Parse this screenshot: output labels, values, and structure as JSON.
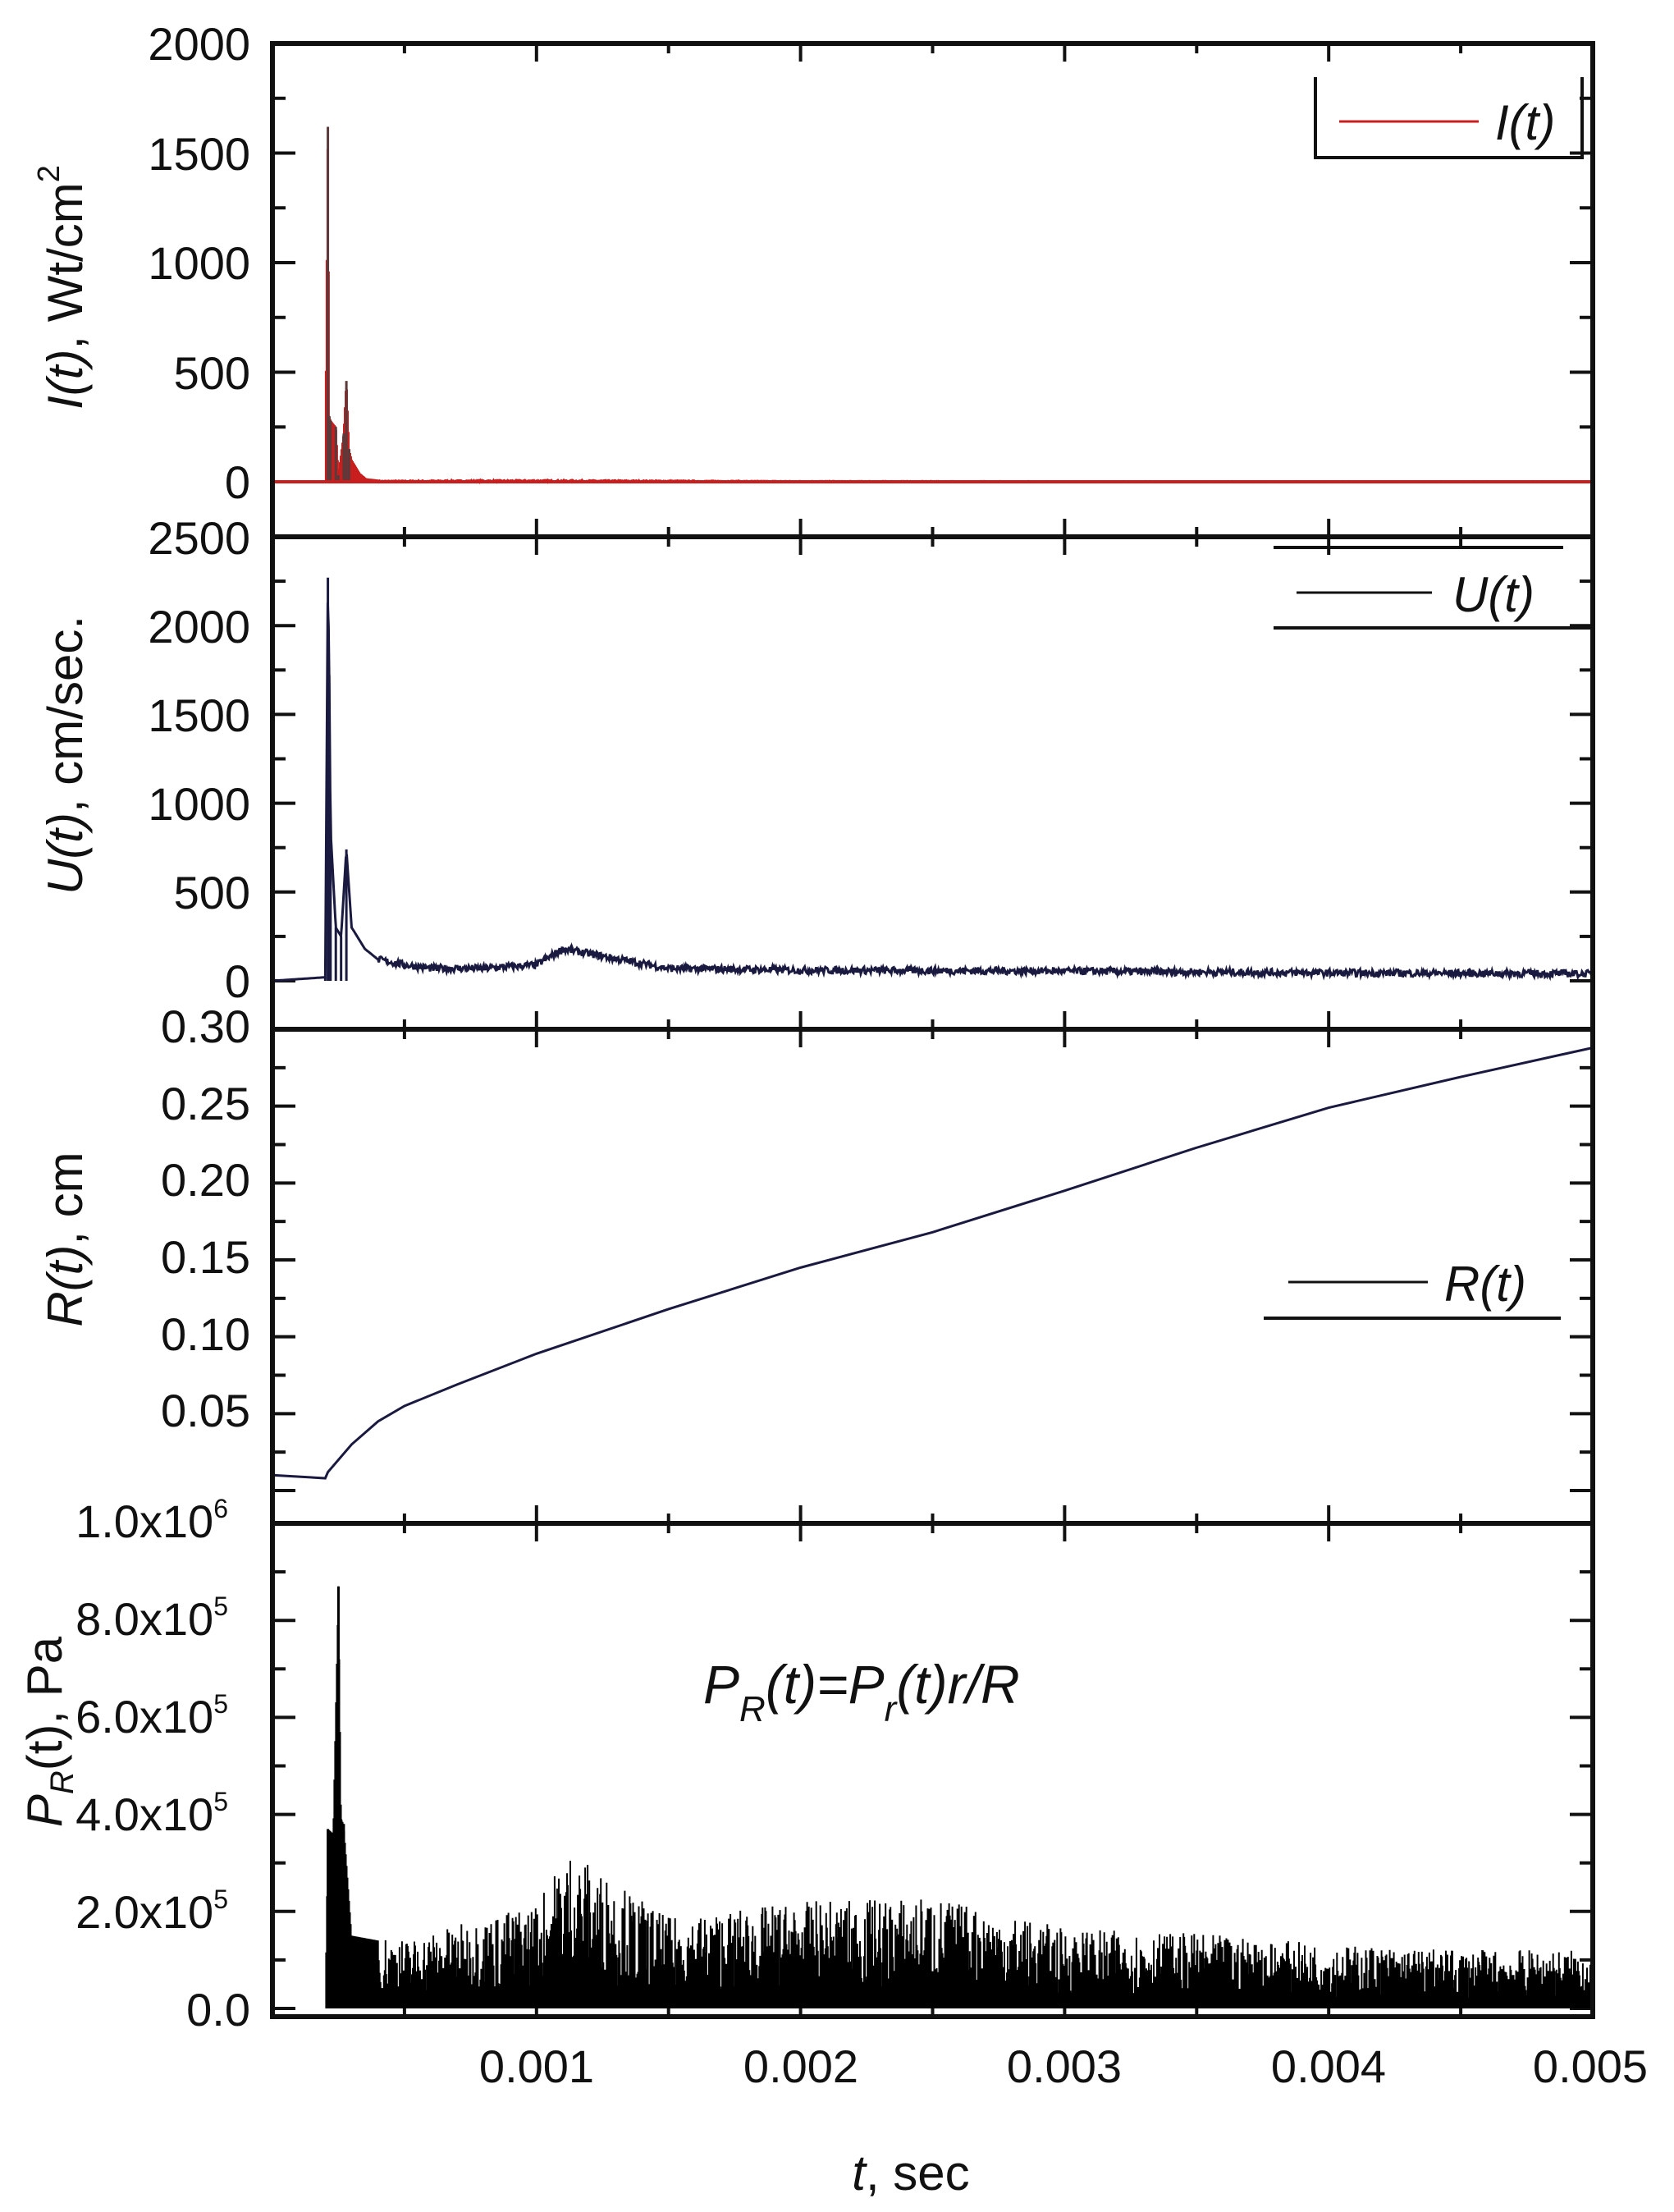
{
  "chart_data": [
    {
      "type": "line",
      "panel": "I",
      "title": "",
      "xlabel": "t, sec",
      "ylabel": "I(t), Wt/cm²",
      "ylabel_parts": {
        "func": "I(t)",
        "unit": ", Wt/cm",
        "sup": "2"
      },
      "ylim": [
        0,
        2000
      ],
      "yticks": [
        0,
        500,
        1000,
        1500,
        2000
      ],
      "ytick_labels": [
        "0",
        "500",
        "1000",
        "1500",
        "2000"
      ],
      "legend": [
        {
          "label": "I(t)",
          "color": "#c81e1e"
        }
      ],
      "legend_position": "upper right",
      "series": [
        {
          "name": "I(t)",
          "color": "#c81e1e",
          "x": [
            0,
            0.0002,
            0.00021,
            0.000215,
            0.00022,
            0.00024,
            0.00025,
            0.00027,
            0.00028,
            0.00029,
            0.0003,
            0.00033,
            0.00036,
            0.0004,
            0.001,
            0.002,
            0.003,
            0.004,
            0.005
          ],
          "values": [
            0,
            0,
            1620,
            300,
            280,
            250,
            30,
            220,
            460,
            150,
            100,
            40,
            10,
            5,
            8,
            3,
            2,
            2,
            2
          ]
        }
      ]
    },
    {
      "type": "line",
      "panel": "U",
      "ylabel": "U(t), cm/sec.",
      "ylabel_parts": {
        "func": "U(t)",
        "unit": ", cm/sec."
      },
      "ylim": [
        0,
        2500
      ],
      "yticks": [
        0,
        500,
        1000,
        1500,
        2000,
        2500
      ],
      "ytick_labels": [
        "0",
        "500",
        "1000",
        "1500",
        "2000",
        "2500"
      ],
      "legend": [
        {
          "label": "U(t)",
          "color": "#1a1a40"
        }
      ],
      "legend_position": "upper right",
      "series": [
        {
          "name": "U(t)",
          "color": "#1a1a40",
          "x": [
            0,
            0.0002,
            0.00021,
            0.000215,
            0.00022,
            0.00024,
            0.00026,
            0.00028,
            0.0003,
            0.00035,
            0.0004,
            0.0005,
            0.0006,
            0.0008,
            0.001,
            0.0011,
            0.0015,
            0.002,
            0.003,
            0.004,
            0.005
          ],
          "values": [
            0,
            20,
            2270,
            1720,
            850,
            300,
            250,
            740,
            300,
            180,
            120,
            90,
            70,
            70,
            90,
            180,
            70,
            60,
            55,
            45,
            40
          ]
        }
      ]
    },
    {
      "type": "line",
      "panel": "R",
      "ylabel": "R(t), cm",
      "ylabel_parts": {
        "func": "R(t)",
        "unit": ", cm"
      },
      "ylim": [
        0,
        0.3
      ],
      "yticks": [
        0.05,
        0.1,
        0.15,
        0.2,
        0.25,
        0.3
      ],
      "ytick_labels": [
        "0.05",
        "0.10",
        "0.15",
        "0.20",
        "0.25",
        "0.30"
      ],
      "legend": [
        {
          "label": "R(t)",
          "color": "#1a1a40"
        }
      ],
      "legend_position": "center right",
      "series": [
        {
          "name": "R(t)",
          "color": "#1a1a40",
          "x": [
            0,
            0.0002,
            0.00021,
            0.0003,
            0.0004,
            0.0005,
            0.0007,
            0.001,
            0.0015,
            0.002,
            0.0025,
            0.003,
            0.0035,
            0.004,
            0.0045,
            0.005
          ],
          "values": [
            0.01,
            0.008,
            0.012,
            0.03,
            0.045,
            0.055,
            0.069,
            0.089,
            0.118,
            0.145,
            0.168,
            0.195,
            0.223,
            0.249,
            0.269,
            0.288
          ]
        }
      ]
    },
    {
      "type": "line",
      "panel": "P",
      "ylabel": "P_R(t), Pa",
      "ylabel_parts": {
        "func": "P",
        "sub": "R",
        "rest": "(t), Pa"
      },
      "ylim": [
        0,
        1000000
      ],
      "yticks": [
        0,
        200000,
        400000,
        600000,
        800000,
        1000000
      ],
      "ytick_labels": [
        "0.0",
        "2.0x10",
        "4.0x10",
        "6.0x10",
        "8.0x10",
        "1.0x10"
      ],
      "ytick_exponents": [
        "",
        "5",
        "5",
        "5",
        "5",
        "6"
      ],
      "annotation": {
        "main": "P",
        "sub1": "R",
        "mid": "(t)=P",
        "sub2": "r",
        "end": "(t)r/R"
      },
      "series": [
        {
          "name": "P_R(t)",
          "color": "#000000",
          "x": [
            0,
            0.0002,
            0.00021,
            0.00023,
            0.00025,
            0.00026,
            0.00027,
            0.0003,
            0.0005,
            0.0008,
            0.001,
            0.00112,
            0.0015,
            0.002,
            0.0025,
            0.003,
            0.0035,
            0.004,
            0.0045,
            0.005
          ],
          "values": [
            0,
            0,
            370000,
            360000,
            870000,
            390000,
            380000,
            150000,
            130000,
            170000,
            200000,
            300000,
            170000,
            200000,
            210000,
            150000,
            140000,
            120000,
            110000,
            110000
          ]
        }
      ]
    }
  ],
  "x_axis": {
    "label_italic": "t",
    "label_rest": ", sec",
    "xlim": [
      0,
      0.005
    ],
    "ticks": [
      0.001,
      0.002,
      0.003,
      0.004,
      0.005
    ],
    "tick_labels": [
      "0.001",
      "0.002",
      "0.003",
      "0.004",
      "0.005"
    ]
  }
}
